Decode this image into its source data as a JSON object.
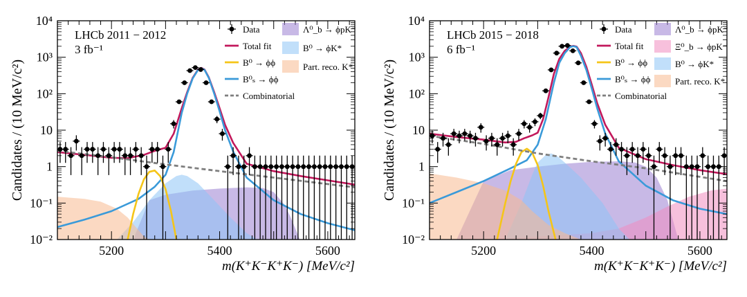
{
  "chart_data": [
    {
      "type": "line",
      "yscale": "log",
      "title": "LHCb 2011 − 2012",
      "subtitle": "3 fb⁻¹",
      "xlabel": "m(K⁺K⁻K⁺K⁻) [MeV/c²]",
      "ylabel": "Candidates / (10 MeV/c²)",
      "xlim": [
        5100,
        5650
      ],
      "ylim": [
        0.01,
        10000
      ],
      "x_ticks": [
        "5200",
        "5400",
        "5600"
      ],
      "y_ticks": [
        "10⁻²",
        "10⁻¹",
        "1",
        "10",
        "10²",
        "10³",
        "10⁴"
      ],
      "legend": {
        "placement": "top-right",
        "entries": [
          {
            "label": "Data",
            "kind": "data",
            "color": "#000000"
          },
          {
            "label": "Total fit",
            "kind": "line",
            "color": "#c2185b"
          },
          {
            "label": "B⁰ → ϕϕ",
            "kind": "line",
            "color": "#f5c518"
          },
          {
            "label": "B⁰ₛ → ϕϕ",
            "kind": "line",
            "color": "#3a9ad9"
          },
          {
            "label": "Combinatorial",
            "kind": "dash",
            "color": "#7f7f7f"
          },
          {
            "label": "Λ⁰_b → ϕpK⁻",
            "kind": "fill",
            "color": "#9b7fd1"
          },
          {
            "label": "B⁰ → ϕK*",
            "kind": "fill",
            "color": "#8ec5f5"
          },
          {
            "label": "Part. reco. K*",
            "kind": "fill",
            "color": "#f7b98f"
          }
        ]
      },
      "data_points": {
        "x": [
          5105,
          5115,
          5125,
          5135,
          5145,
          5155,
          5165,
          5175,
          5185,
          5195,
          5205,
          5215,
          5225,
          5235,
          5245,
          5255,
          5265,
          5275,
          5285,
          5295,
          5305,
          5315,
          5325,
          5335,
          5345,
          5355,
          5365,
          5375,
          5385,
          5395,
          5405,
          5415,
          5425,
          5435,
          5445,
          5455,
          5465,
          5475,
          5485,
          5495,
          5505,
          5515,
          5525,
          5535,
          5545,
          5555,
          5565,
          5575,
          5585,
          5595,
          5605,
          5615,
          5625,
          5635,
          5645
        ],
        "y": [
          3,
          3,
          2,
          5,
          2,
          3,
          3,
          2,
          3,
          2,
          3,
          3,
          2,
          2,
          3,
          2,
          1,
          3,
          3,
          1,
          3,
          15,
          60,
          200,
          430,
          520,
          460,
          200,
          60,
          20,
          8,
          1,
          2,
          1,
          1,
          2,
          1,
          1,
          1,
          1,
          1,
          1,
          1,
          1,
          1,
          1,
          1,
          1,
          1,
          1,
          1,
          1,
          1,
          1,
          1
        ]
      },
      "series": [
        {
          "name": "Total fit",
          "x": [
            5100,
            5150,
            5200,
            5230,
            5260,
            5280,
            5300,
            5315,
            5330,
            5340,
            5350,
            5360,
            5366,
            5372,
            5380,
            5390,
            5400,
            5410,
            5425,
            5450,
            5500,
            5550,
            5600,
            5650
          ],
          "values": [
            2.5,
            2.1,
            1.75,
            1.7,
            2.1,
            2.7,
            3.3,
            8,
            40,
            110,
            270,
            460,
            510,
            460,
            280,
            110,
            40,
            14,
            4.5,
            1.2,
            0.75,
            0.55,
            0.42,
            0.32
          ]
        },
        {
          "name": "B⁰ₛ → ϕϕ",
          "x": [
            5100,
            5150,
            5200,
            5250,
            5280,
            5300,
            5315,
            5330,
            5340,
            5350,
            5360,
            5366,
            5372,
            5380,
            5390,
            5400,
            5410,
            5425,
            5450,
            5500,
            5550,
            5600,
            5650
          ],
          "values": [
            0.022,
            0.035,
            0.06,
            0.13,
            0.28,
            0.6,
            2.5,
            30,
            100,
            260,
            450,
            500,
            450,
            270,
            100,
            33,
            10,
            2.6,
            0.5,
            0.12,
            0.05,
            0.028,
            0.018
          ]
        },
        {
          "name": "B⁰ → ϕϕ",
          "x": [
            5230,
            5240,
            5250,
            5260,
            5270,
            5280,
            5290,
            5300,
            5310,
            5320
          ],
          "values": [
            0.01,
            0.05,
            0.18,
            0.45,
            0.72,
            0.78,
            0.55,
            0.24,
            0.06,
            0.01
          ]
        },
        {
          "name": "Combinatorial",
          "x": [
            5100,
            5200,
            5300,
            5400,
            5500,
            5650
          ],
          "values": [
            2.7,
            1.8,
            1.15,
            0.75,
            0.5,
            0.27
          ]
        },
        {
          "name": "Λ⁰_b → ϕpK⁻",
          "x": [
            5240,
            5270,
            5300,
            5350,
            5400,
            5450,
            5480,
            5500,
            5520,
            5530,
            5540,
            5548
          ],
          "values": [
            0.01,
            0.12,
            0.17,
            0.22,
            0.25,
            0.27,
            0.26,
            0.2,
            0.09,
            0.045,
            0.02,
            0.01
          ]
        },
        {
          "name": "B⁰ → ϕK*",
          "x": [
            5210,
            5240,
            5270,
            5300,
            5320,
            5330,
            5340,
            5360,
            5390,
            5420,
            5450,
            5470
          ],
          "values": [
            0.01,
            0.03,
            0.12,
            0.35,
            0.55,
            0.6,
            0.55,
            0.35,
            0.12,
            0.04,
            0.015,
            0.01
          ]
        },
        {
          "name": "Part. reco. K*",
          "x": [
            5100,
            5150,
            5180,
            5210,
            5230,
            5250,
            5260,
            5270
          ],
          "values": [
            0.15,
            0.13,
            0.11,
            0.07,
            0.04,
            0.018,
            0.012,
            0.01
          ]
        }
      ]
    },
    {
      "type": "line",
      "yscale": "log",
      "title": "LHCb 2015 − 2018",
      "subtitle": "6 fb⁻¹",
      "xlabel": "m(K⁺K⁻K⁺K⁻) [MeV/c²]",
      "ylabel": "Candidates / (10 MeV/c²)",
      "xlim": [
        5100,
        5650
      ],
      "ylim": [
        0.01,
        10000
      ],
      "x_ticks": [
        "5200",
        "5400",
        "5600"
      ],
      "y_ticks": [
        "10⁻²",
        "10⁻¹",
        "1",
        "10",
        "10²",
        "10³",
        "10⁴"
      ],
      "legend": {
        "placement": "top-right",
        "entries": [
          {
            "label": "Data",
            "kind": "data",
            "color": "#000000"
          },
          {
            "label": "Total fit",
            "kind": "line",
            "color": "#c2185b"
          },
          {
            "label": "B⁰ → ϕϕ",
            "kind": "line",
            "color": "#f5c518"
          },
          {
            "label": "B⁰ₛ → ϕϕ",
            "kind": "line",
            "color": "#3a9ad9"
          },
          {
            "label": "Combinatorial",
            "kind": "dash",
            "color": "#7f7f7f"
          },
          {
            "label": "Λ⁰_b → ϕpK⁻",
            "kind": "fill",
            "color": "#9b7fd1"
          },
          {
            "label": "Ξ⁰_b → ϕpK⁻",
            "kind": "fill",
            "color": "#f08cbf"
          },
          {
            "label": "B⁰ → ϕK*",
            "kind": "fill",
            "color": "#8ec5f5"
          },
          {
            "label": "Part. reco. K*",
            "kind": "fill",
            "color": "#f7b98f"
          }
        ]
      },
      "data_points": {
        "x": [
          5105,
          5115,
          5125,
          5135,
          5145,
          5155,
          5165,
          5175,
          5185,
          5195,
          5205,
          5215,
          5225,
          5235,
          5245,
          5255,
          5265,
          5275,
          5285,
          5295,
          5305,
          5315,
          5325,
          5335,
          5345,
          5355,
          5365,
          5375,
          5385,
          5395,
          5405,
          5415,
          5425,
          5435,
          5445,
          5455,
          5465,
          5475,
          5485,
          5495,
          5505,
          5515,
          5525,
          5535,
          5545,
          5555,
          5565,
          5575,
          5585,
          5595,
          5605,
          5615,
          5625,
          5635,
          5645
        ],
        "y": [
          7,
          3,
          6,
          4,
          8,
          7,
          8,
          7,
          6,
          12,
          5,
          6,
          4,
          6,
          7,
          4,
          8,
          15,
          12,
          17,
          25,
          120,
          450,
          1300,
          2000,
          2100,
          1500,
          700,
          200,
          60,
          15,
          5,
          6,
          3,
          4,
          3,
          2,
          3,
          2,
          3,
          2,
          1,
          3,
          2,
          1,
          2,
          2,
          1,
          1,
          1,
          2,
          1,
          1,
          1,
          2
        ]
      },
      "series": [
        {
          "name": "Total fit",
          "x": [
            5100,
            5150,
            5200,
            5240,
            5260,
            5275,
            5290,
            5300,
            5310,
            5320,
            5330,
            5340,
            5350,
            5360,
            5366,
            5372,
            5380,
            5390,
            5400,
            5410,
            5425,
            5450,
            5500,
            5550,
            5600,
            5650
          ],
          "values": [
            8,
            6.5,
            5.5,
            4.6,
            4.8,
            6,
            7.2,
            8.5,
            20,
            80,
            350,
            900,
            1500,
            1950,
            2050,
            1950,
            1300,
            550,
            180,
            55,
            14,
            3.3,
            1.6,
            1.1,
            0.8,
            0.62
          ]
        },
        {
          "name": "B⁰ₛ → ϕϕ",
          "x": [
            5100,
            5150,
            5200,
            5250,
            5280,
            5300,
            5315,
            5330,
            5340,
            5350,
            5360,
            5366,
            5372,
            5380,
            5390,
            5400,
            5410,
            5425,
            5450,
            5500,
            5550,
            5600,
            5650
          ],
          "values": [
            0.1,
            0.2,
            0.4,
            0.9,
            1.5,
            4,
            20,
            200,
            700,
            1300,
            1900,
            2000,
            1900,
            1100,
            450,
            140,
            40,
            8,
            1.4,
            0.3,
            0.12,
            0.07,
            0.05
          ]
        },
        {
          "name": "B⁰ → ϕϕ",
          "x": [
            5225,
            5240,
            5250,
            5260,
            5270,
            5280,
            5290,
            5300,
            5310,
            5320,
            5333
          ],
          "values": [
            0.01,
            0.1,
            0.4,
            1.2,
            2.5,
            3.1,
            2.4,
            1.1,
            0.3,
            0.06,
            0.01
          ]
        },
        {
          "name": "Combinatorial",
          "x": [
            5100,
            5200,
            5300,
            5400,
            5500,
            5650
          ],
          "values": [
            7,
            4.2,
            2.3,
            1.4,
            0.9,
            0.4
          ]
        },
        {
          "name": "Λ⁰_b → ϕpK⁻",
          "x": [
            5150,
            5200,
            5250,
            5300,
            5350,
            5400,
            5450,
            5480,
            5500,
            5520,
            5540,
            5560
          ],
          "values": [
            0.01,
            0.4,
            0.8,
            1.0,
            1.2,
            1.35,
            1.4,
            1.3,
            1.0,
            0.5,
            0.12,
            0.01
          ]
        },
        {
          "name": "Ξ⁰_b → ϕpK⁻",
          "x": [
            5200,
            5300,
            5400,
            5450,
            5500,
            5540,
            5580,
            5620,
            5650
          ],
          "values": [
            0.01,
            0.012,
            0.015,
            0.02,
            0.04,
            0.08,
            0.15,
            0.22,
            0.25
          ]
        },
        {
          "name": "B⁰ → ϕK*",
          "x": [
            5240,
            5270,
            5290,
            5300,
            5315,
            5325,
            5335,
            5350,
            5380,
            5420,
            5450,
            5470
          ],
          "values": [
            0.01,
            0.1,
            0.6,
            1.3,
            2.1,
            2.3,
            2.0,
            1.3,
            0.5,
            0.1,
            0.02,
            0.01
          ]
        },
        {
          "name": "Part. reco. K*",
          "x": [
            5100,
            5150,
            5200,
            5240,
            5270,
            5290,
            5320,
            5350,
            5380
          ],
          "values": [
            0.65,
            0.5,
            0.35,
            0.22,
            0.12,
            0.06,
            0.025,
            0.015,
            0.01
          ]
        }
      ]
    }
  ]
}
